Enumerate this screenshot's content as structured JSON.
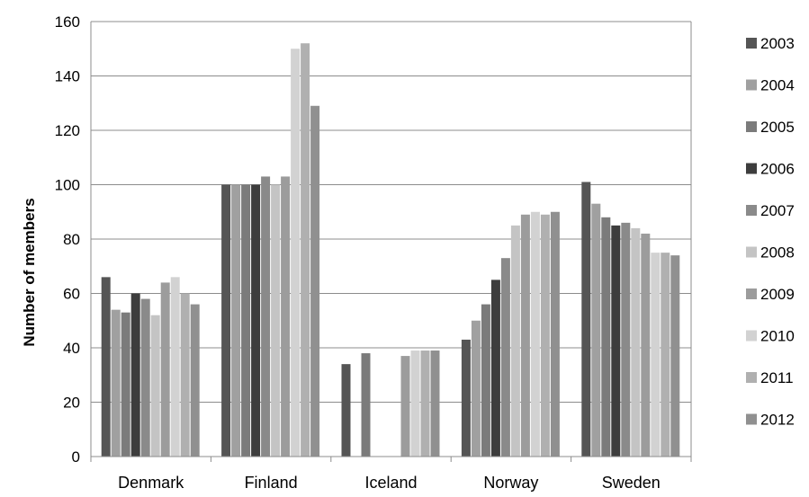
{
  "chart_data": {
    "type": "bar",
    "xlabel": "",
    "ylabel": "Number of members",
    "ylim": [
      0,
      160
    ],
    "yticks": [
      "0",
      "20",
      "40",
      "60",
      "80",
      "100",
      "120",
      "140",
      "160"
    ],
    "grid": true,
    "legend_position": "right",
    "categories": [
      "Denmark",
      "Finland",
      "Iceland",
      "Norway",
      "Sweden"
    ],
    "series": [
      {
        "name": "2003",
        "color": "#555555",
        "values": [
          66,
          100,
          34,
          43,
          101
        ]
      },
      {
        "name": "2004",
        "color": "#a0a0a0",
        "values": [
          54,
          100,
          null,
          50,
          93
        ]
      },
      {
        "name": "2005",
        "color": "#7b7b7b",
        "values": [
          53,
          100,
          38,
          56,
          88
        ]
      },
      {
        "name": "2006",
        "color": "#3d3d3d",
        "values": [
          60,
          100,
          null,
          65,
          85
        ]
      },
      {
        "name": "2007",
        "color": "#8a8a8a",
        "values": [
          58,
          103,
          null,
          73,
          86
        ]
      },
      {
        "name": "2008",
        "color": "#c4c4c4",
        "values": [
          52,
          100,
          null,
          85,
          84
        ]
      },
      {
        "name": "2009",
        "color": "#9c9c9c",
        "values": [
          64,
          103,
          37,
          89,
          82
        ]
      },
      {
        "name": "2010",
        "color": "#d2d2d2",
        "values": [
          66,
          150,
          39,
          90,
          75
        ]
      },
      {
        "name": "2011",
        "color": "#b0b0b0",
        "values": [
          60,
          152,
          39,
          89,
          75
        ]
      },
      {
        "name": "2012",
        "color": "#909090",
        "values": [
          56,
          129,
          39,
          90,
          74
        ]
      }
    ]
  }
}
